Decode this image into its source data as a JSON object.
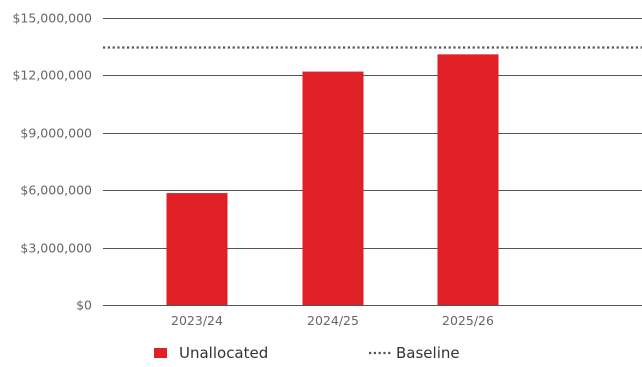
{
  "chart_data": {
    "type": "bar",
    "categories": [
      "2023/24",
      "2024/25",
      "2025/26"
    ],
    "series": [
      {
        "name": "Unallocated",
        "values": [
          5850000,
          12200000,
          13100000
        ],
        "color": "#e01f26"
      }
    ],
    "reference_lines": [
      {
        "name": "Baseline",
        "value": 13500000,
        "style": "dotted",
        "color": "#555555"
      }
    ],
    "y_ticks": [
      0,
      3000000,
      6000000,
      9000000,
      12000000,
      15000000
    ],
    "y_tick_labels": [
      "$0",
      "$3,000,000",
      "$6,000,000",
      "$9,000,000",
      "$12,000,000",
      "$15,000,000"
    ],
    "ylim": [
      0,
      15000000
    ],
    "title": "",
    "xlabel": "",
    "ylabel": "",
    "grid": true,
    "legend": {
      "placement": "bottom",
      "entries": [
        {
          "label": "Unallocated",
          "marker": "square"
        },
        {
          "label": "Baseline",
          "marker": "dotted-line"
        }
      ]
    },
    "grid_color": "#555555",
    "axis_label_color": "#666666"
  }
}
